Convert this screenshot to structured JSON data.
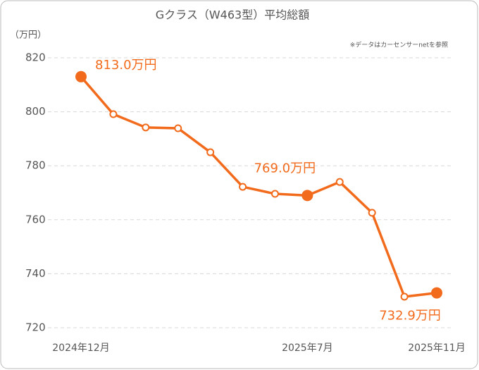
{
  "chart_data": {
    "type": "line",
    "title": "Gクラス（W463型）平均総額",
    "y_unit": "（万円）",
    "note": "※データはカーセンサーnetを参照",
    "categories": [
      "2024年12月",
      null,
      null,
      null,
      null,
      null,
      null,
      "2025年7月",
      null,
      null,
      null,
      "2025年11月"
    ],
    "series": [
      {
        "name": "平均総額",
        "color": "#f26a1b",
        "values": [
          813.0,
          799.1,
          794.2,
          793.9,
          785.0,
          772.2,
          769.6,
          769.0,
          774.0,
          762.6,
          731.5,
          732.9
        ],
        "value_labels": [
          "813.0万円",
          null,
          null,
          null,
          null,
          null,
          null,
          "769.0万円",
          null,
          null,
          null,
          "732.9万円"
        ]
      }
    ],
    "ylim": [
      720,
      820
    ],
    "yticks": [
      720,
      740,
      760,
      780,
      800,
      820
    ],
    "grid": true
  }
}
